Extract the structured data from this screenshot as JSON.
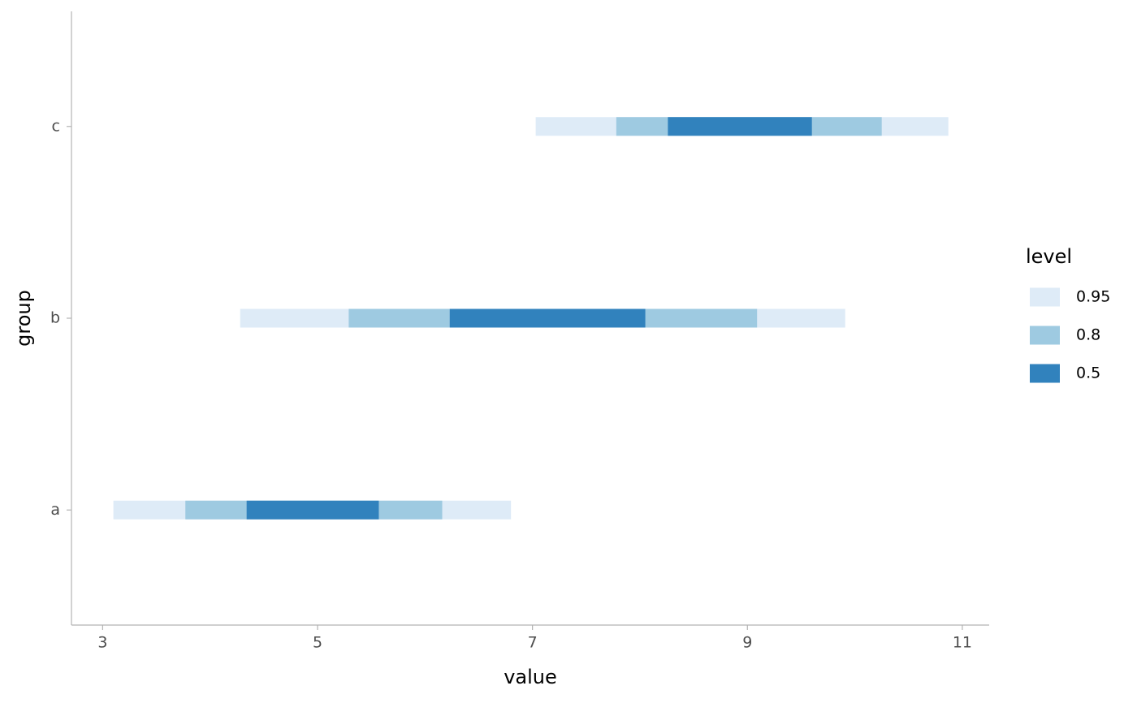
{
  "chart_data": {
    "type": "interval",
    "x_label": "value",
    "y_label": "group",
    "legend_title": "level",
    "categories": [
      "a",
      "b",
      "c"
    ],
    "series": [
      {
        "name": "0.95",
        "color": "#deebf7",
        "low": [
          3.1,
          4.28,
          7.03
        ],
        "high": [
          6.8,
          9.91,
          10.87
        ]
      },
      {
        "name": "0.8",
        "color": "#9ecae1",
        "low": [
          3.77,
          5.29,
          7.78
        ],
        "high": [
          6.16,
          9.09,
          10.25
        ]
      },
      {
        "name": "0.5",
        "color": "#3182bd",
        "low": [
          4.34,
          6.23,
          8.26
        ],
        "high": [
          5.57,
          8.05,
          9.6
        ]
      }
    ],
    "xlim": [
      2.71,
      11.25
    ],
    "xticks": [
      3,
      5,
      7,
      9,
      11
    ],
    "grid": false,
    "legend_position": "right"
  }
}
